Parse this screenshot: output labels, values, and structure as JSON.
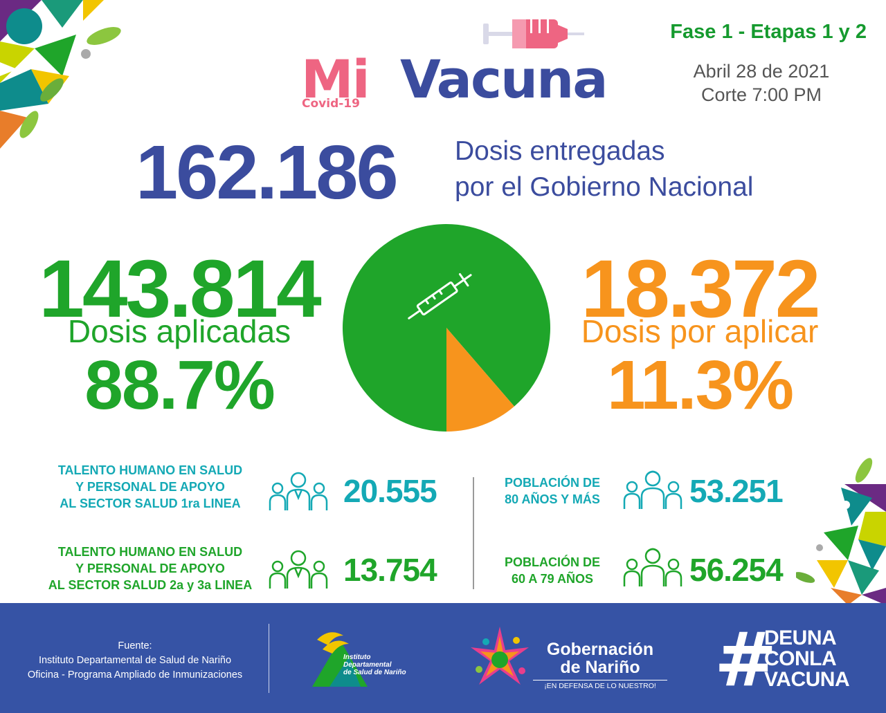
{
  "logo": {
    "mi": "Mi",
    "vacuna": "Vacuna",
    "covid": "Covid-19"
  },
  "header": {
    "phase": "Fase 1 - Etapas 1 y 2",
    "date": "Abril 28 de 2021",
    "cutoff": "Corte 7:00 PM"
  },
  "delivered": {
    "value": "162.186",
    "label_line1": "Dosis entregadas",
    "label_line2": "por el Gobierno Nacional"
  },
  "applied": {
    "value": "143.814",
    "label": "Dosis aplicadas",
    "percent": "88.7%"
  },
  "pending": {
    "value": "18.372",
    "label": "Dosis por aplicar",
    "percent": "11.3%"
  },
  "chart_data": {
    "type": "pie",
    "slices": [
      {
        "label": "Dosis aplicadas",
        "value": 143814,
        "percent": 88.7,
        "color": "#1fa52a"
      },
      {
        "label": "Dosis por aplicar",
        "value": 18372,
        "percent": 11.3,
        "color": "#f7941d"
      }
    ]
  },
  "stats": [
    {
      "line1": "TALENTO HUMANO EN SALUD",
      "line2": "Y PERSONAL DE APOYO",
      "line3": "AL SECTOR SALUD 1ra LINEA",
      "value": "20.555",
      "icon": "health-workers-icon"
    },
    {
      "line1": "TALENTO HUMANO EN SALUD",
      "line2": "Y PERSONAL DE APOYO",
      "line3": "AL SECTOR SALUD 2a y 3a LINEA",
      "value": "13.754",
      "icon": "health-workers-icon"
    },
    {
      "line1": "POBLACIÓN DE",
      "line2": "80 AÑOS Y MÁS",
      "value": "53.251",
      "icon": "elderly-people-icon"
    },
    {
      "line1": "POBLACIÓN DE",
      "line2": "60 A 79 AÑOS",
      "value": "56.254",
      "icon": "elderly-people-icon"
    }
  ],
  "footer": {
    "source_title": "Fuente:",
    "source_line1": "Instituto Departamental de Salud de Nariño",
    "source_line2": "Oficina - Programa Ampliado de Inmunizaciones",
    "ids_line1": "Instituto",
    "ids_line2": "Departamental",
    "ids_line3": "de Salud de Nariño",
    "gob_line1": "Gobernación",
    "gob_line2": "de Nariño",
    "gob_slogan": "¡EN DEFENSA DE LO NUESTRO!",
    "hashtag_symbol": "#",
    "hashtag_line1": "DEUNA",
    "hashtag_line2": "CONLA",
    "hashtag_line3": "VACUNA"
  },
  "colors": {
    "blue": "#3b4c9e",
    "green": "#1fa52a",
    "orange": "#f7941d",
    "teal": "#14a9b5",
    "pink": "#ee6582",
    "footer": "#3653a5"
  }
}
